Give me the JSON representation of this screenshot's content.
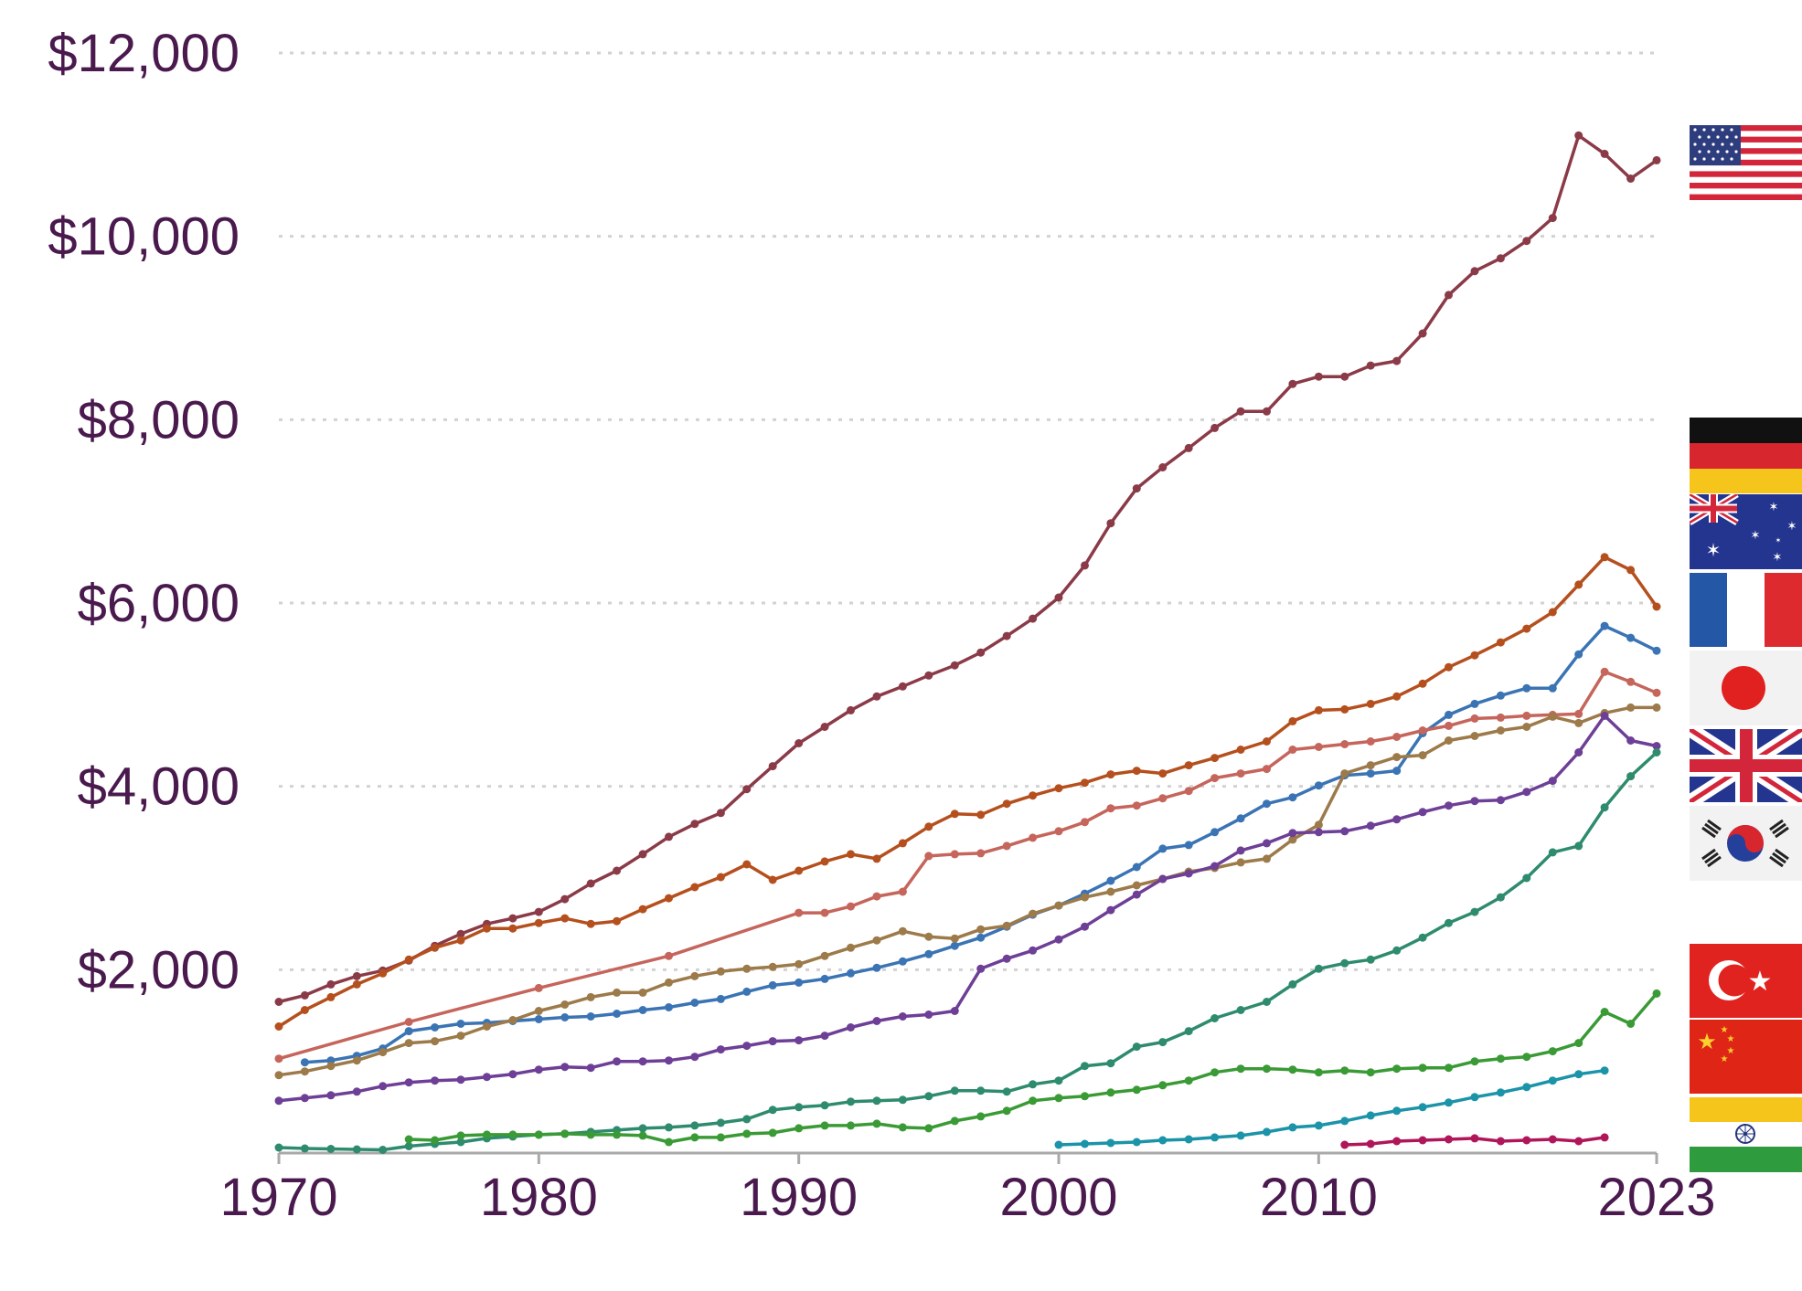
{
  "chart_data": {
    "type": "line",
    "title": "",
    "xlabel": "",
    "ylabel": "",
    "xlim": [
      1970,
      2023
    ],
    "ylim": [
      0,
      12000
    ],
    "grid": true,
    "legend": "right-side flags at line ends",
    "x_ticks": [
      {
        "value": 1970,
        "label": "1970"
      },
      {
        "value": 1980,
        "label": "1980"
      },
      {
        "value": 1990,
        "label": "1990"
      },
      {
        "value": 2000,
        "label": "2000"
      },
      {
        "value": 2010,
        "label": "2010"
      },
      {
        "value": 2023,
        "label": "2023"
      }
    ],
    "y_ticks": [
      {
        "value": 2000,
        "label": "$2,000"
      },
      {
        "value": 4000,
        "label": "$4,000"
      },
      {
        "value": 6000,
        "label": "$6,000"
      },
      {
        "value": 8000,
        "label": "$8,000"
      },
      {
        "value": 10000,
        "label": "$10,000"
      },
      {
        "value": 12000,
        "label": "$12,000"
      }
    ],
    "series": [
      {
        "color": "#8b3a48",
        "flag": "united-states-flag",
        "x": [
          1970,
          1971,
          1972,
          1973,
          1974,
          1975,
          1976,
          1977,
          1978,
          1979,
          1980,
          1981,
          1982,
          1983,
          1984,
          1985,
          1986,
          1987,
          1988,
          1989,
          1990,
          1991,
          1992,
          1993,
          1994,
          1995,
          1996,
          1997,
          1998,
          1999,
          2000,
          2001,
          2002,
          2003,
          2004,
          2005,
          2006,
          2007,
          2008,
          2009,
          2010,
          2011,
          2012,
          2013,
          2014,
          2015,
          2016,
          2017,
          2018,
          2019,
          2020,
          2021,
          2022,
          2023
        ],
        "y": [
          1650,
          1720,
          1840,
          1930,
          1990,
          2100,
          2260,
          2390,
          2500,
          2560,
          2630,
          2770,
          2940,
          3080,
          3260,
          3450,
          3590,
          3710,
          3970,
          4220,
          4470,
          4650,
          4830,
          4980,
          5090,
          5210,
          5320,
          5460,
          5640,
          5830,
          6060,
          6410,
          6870,
          7250,
          7480,
          7690,
          7910,
          8090,
          8090,
          8390,
          8470,
          8470,
          8590,
          8640,
          8940,
          9360,
          9620,
          9760,
          9950,
          10200,
          11100,
          10900,
          10630,
          10830
        ]
      },
      {
        "color": "#b5501e",
        "flag": "germany-flag",
        "x": [
          1970,
          1971,
          1972,
          1973,
          1974,
          1975,
          1976,
          1977,
          1978,
          1979,
          1980,
          1981,
          1982,
          1983,
          1984,
          1985,
          1986,
          1987,
          1988,
          1989,
          1990,
          1991,
          1992,
          1993,
          1994,
          1995,
          1996,
          1997,
          1998,
          1999,
          2000,
          2001,
          2002,
          2003,
          2004,
          2005,
          2006,
          2007,
          2008,
          2009,
          2010,
          2011,
          2012,
          2013,
          2014,
          2015,
          2016,
          2017,
          2018,
          2019,
          2020,
          2021,
          2022,
          2023
        ],
        "y": [
          1380,
          1560,
          1700,
          1840,
          1960,
          2110,
          2240,
          2320,
          2450,
          2450,
          2510,
          2560,
          2500,
          2530,
          2660,
          2780,
          2900,
          3010,
          3150,
          2980,
          3080,
          3180,
          3260,
          3210,
          3380,
          3560,
          3700,
          3690,
          3810,
          3900,
          3980,
          4040,
          4130,
          4170,
          4140,
          4230,
          4310,
          4400,
          4490,
          4710,
          4830,
          4840,
          4900,
          4980,
          5120,
          5300,
          5430,
          5570,
          5720,
          5900,
          6200,
          6500,
          6360,
          5960
        ]
      },
      {
        "color": "#3b74b4",
        "flag": "australia-flag",
        "x": [
          1971,
          1972,
          1973,
          1974,
          1975,
          1976,
          1977,
          1978,
          1979,
          1980,
          1981,
          1982,
          1983,
          1984,
          1985,
          1986,
          1987,
          1988,
          1989,
          1990,
          1991,
          1992,
          1993,
          1994,
          1995,
          1996,
          1997,
          1998,
          1999,
          2000,
          2001,
          2002,
          2003,
          2004,
          2005,
          2006,
          2007,
          2008,
          2009,
          2010,
          2011,
          2012,
          2013,
          2014,
          2015,
          2016,
          2017,
          2018,
          2019,
          2020,
          2021,
          2022,
          2023
        ],
        "y": [
          990,
          1010,
          1060,
          1140,
          1330,
          1370,
          1410,
          1420,
          1440,
          1460,
          1480,
          1490,
          1520,
          1560,
          1590,
          1640,
          1680,
          1760,
          1830,
          1860,
          1900,
          1960,
          2020,
          2090,
          2170,
          2260,
          2350,
          2470,
          2600,
          2700,
          2830,
          2970,
          3120,
          3320,
          3360,
          3500,
          3650,
          3810,
          3880,
          4010,
          4120,
          4140,
          4170,
          4580,
          4780,
          4900,
          4990,
          5070,
          5070,
          5440,
          5750,
          5620,
          5480
        ]
      },
      {
        "color": "#c5655b",
        "flag": "france-flag",
        "x": [
          1970,
          1975,
          1980,
          1985,
          1990,
          1991,
          1992,
          1993,
          1994,
          1995,
          1996,
          1997,
          1998,
          1999,
          2000,
          2001,
          2002,
          2003,
          2004,
          2005,
          2006,
          2007,
          2008,
          2009,
          2010,
          2011,
          2012,
          2013,
          2014,
          2015,
          2016,
          2017,
          2018,
          2019,
          2020,
          2021,
          2022,
          2023
        ],
        "y": [
          1030,
          1430,
          1800,
          2150,
          2620,
          2620,
          2690,
          2800,
          2850,
          3240,
          3260,
          3270,
          3350,
          3440,
          3510,
          3610,
          3760,
          3790,
          3870,
          3950,
          4090,
          4140,
          4190,
          4400,
          4430,
          4460,
          4490,
          4540,
          4610,
          4660,
          4740,
          4750,
          4770,
          4780,
          4790,
          5250,
          5140,
          5020
        ]
      },
      {
        "color": "#9c7a4a",
        "flag": "japan-flag",
        "x": [
          1970,
          1971,
          1972,
          1973,
          1974,
          1975,
          1976,
          1977,
          1978,
          1979,
          1980,
          1981,
          1982,
          1983,
          1984,
          1985,
          1986,
          1987,
          1988,
          1989,
          1990,
          1991,
          1992,
          1993,
          1994,
          1995,
          1996,
          1997,
          1998,
          1999,
          2000,
          2001,
          2002,
          2003,
          2004,
          2005,
          2006,
          2007,
          2008,
          2009,
          2010,
          2011,
          2012,
          2013,
          2014,
          2015,
          2016,
          2017,
          2018,
          2019,
          2020,
          2021,
          2022,
          2023
        ],
        "y": [
          850,
          890,
          950,
          1010,
          1100,
          1200,
          1220,
          1280,
          1380,
          1450,
          1550,
          1620,
          1700,
          1750,
          1750,
          1860,
          1930,
          1980,
          2010,
          2030,
          2060,
          2150,
          2240,
          2320,
          2420,
          2360,
          2340,
          2440,
          2480,
          2610,
          2700,
          2790,
          2850,
          2920,
          2990,
          3070,
          3110,
          3170,
          3210,
          3420,
          3580,
          4140,
          4230,
          4320,
          4340,
          4500,
          4550,
          4610,
          4650,
          4760,
          4690,
          4800,
          4860,
          4860
        ]
      },
      {
        "color": "#6e3f96",
        "flag": "united-kingdom-flag",
        "x": [
          1970,
          1971,
          1972,
          1973,
          1974,
          1975,
          1976,
          1977,
          1978,
          1979,
          1980,
          1981,
          1982,
          1983,
          1984,
          1985,
          1986,
          1987,
          1988,
          1989,
          1990,
          1991,
          1992,
          1993,
          1994,
          1995,
          1996,
          1997,
          1998,
          1999,
          2000,
          2001,
          2002,
          2003,
          2004,
          2005,
          2006,
          2007,
          2008,
          2009,
          2010,
          2011,
          2012,
          2013,
          2014,
          2015,
          2016,
          2017,
          2018,
          2019,
          2020,
          2021,
          2022,
          2023
        ],
        "y": [
          570,
          600,
          630,
          670,
          730,
          770,
          790,
          800,
          830,
          860,
          910,
          940,
          930,
          1000,
          1000,
          1010,
          1050,
          1130,
          1170,
          1220,
          1230,
          1280,
          1370,
          1440,
          1490,
          1510,
          1550,
          2010,
          2120,
          2210,
          2330,
          2470,
          2650,
          2820,
          2990,
          3050,
          3130,
          3300,
          3380,
          3490,
          3500,
          3510,
          3570,
          3640,
          3720,
          3790,
          3840,
          3850,
          3940,
          4060,
          4370,
          4770,
          4500,
          4440
        ]
      },
      {
        "color": "#2e8b6e",
        "flag": "south-korea-flag",
        "x": [
          1970,
          1971,
          1972,
          1973,
          1974,
          1975,
          1976,
          1977,
          1978,
          1979,
          1980,
          1981,
          1982,
          1983,
          1984,
          1985,
          1986,
          1987,
          1988,
          1989,
          1990,
          1991,
          1992,
          1993,
          1994,
          1995,
          1996,
          1997,
          1998,
          1999,
          2000,
          2001,
          2002,
          2003,
          2004,
          2005,
          2006,
          2007,
          2008,
          2009,
          2010,
          2011,
          2012,
          2013,
          2014,
          2015,
          2016,
          2017,
          2018,
          2019,
          2020,
          2021,
          2022,
          2023
        ],
        "y": [
          60,
          50,
          45,
          40,
          35,
          75,
          100,
          120,
          160,
          180,
          200,
          210,
          230,
          250,
          270,
          280,
          300,
          330,
          370,
          470,
          500,
          520,
          560,
          570,
          580,
          620,
          680,
          680,
          670,
          750,
          790,
          950,
          980,
          1160,
          1210,
          1330,
          1470,
          1560,
          1650,
          1840,
          2010,
          2070,
          2110,
          2210,
          2350,
          2510,
          2630,
          2790,
          3000,
          3280,
          3350,
          3770,
          4110,
          4370
        ]
      },
      {
        "color": "#3a9a35",
        "flag": "turkey-flag",
        "x": [
          1975,
          1976,
          1977,
          1978,
          1979,
          1980,
          1981,
          1982,
          1983,
          1984,
          1985,
          1986,
          1987,
          1988,
          1989,
          1990,
          1991,
          1992,
          1993,
          1994,
          1995,
          1996,
          1997,
          1998,
          1999,
          2000,
          2001,
          2002,
          2003,
          2004,
          2005,
          2006,
          2007,
          2008,
          2009,
          2010,
          2011,
          2012,
          2013,
          2014,
          2015,
          2016,
          2017,
          2018,
          2019,
          2020,
          2021,
          2022,
          2023
        ],
        "y": [
          150,
          140,
          190,
          200,
          200,
          200,
          210,
          200,
          200,
          190,
          120,
          170,
          170,
          210,
          220,
          270,
          300,
          300,
          320,
          280,
          270,
          350,
          400,
          460,
          570,
          600,
          620,
          660,
          690,
          740,
          790,
          880,
          920,
          920,
          910,
          880,
          900,
          880,
          920,
          930,
          930,
          1000,
          1030,
          1050,
          1110,
          1200,
          1540,
          1410,
          1740
        ]
      },
      {
        "color": "#1b93a8",
        "flag": "china-flag",
        "x": [
          2000,
          2001,
          2002,
          2003,
          2004,
          2005,
          2006,
          2007,
          2008,
          2009,
          2010,
          2011,
          2012,
          2013,
          2014,
          2015,
          2016,
          2017,
          2018,
          2019,
          2020,
          2021
        ],
        "y": [
          90,
          100,
          110,
          120,
          140,
          150,
          170,
          190,
          230,
          280,
          300,
          350,
          410,
          460,
          500,
          550,
          610,
          660,
          720,
          790,
          860,
          900
        ]
      },
      {
        "color": "#b0165a",
        "flag": "india-flag",
        "x": [
          2011,
          2012,
          2013,
          2014,
          2015,
          2016,
          2017,
          2018,
          2019,
          2020,
          2021
        ],
        "y": [
          90,
          100,
          130,
          140,
          150,
          160,
          130,
          140,
          150,
          130,
          170
        ]
      }
    ],
    "flags": [
      "united-states-flag",
      "germany-flag",
      "australia-flag",
      "france-flag",
      "japan-flag",
      "united-kingdom-flag",
      "south-korea-flag",
      "turkey-flag",
      "china-flag",
      "india-flag"
    ]
  }
}
